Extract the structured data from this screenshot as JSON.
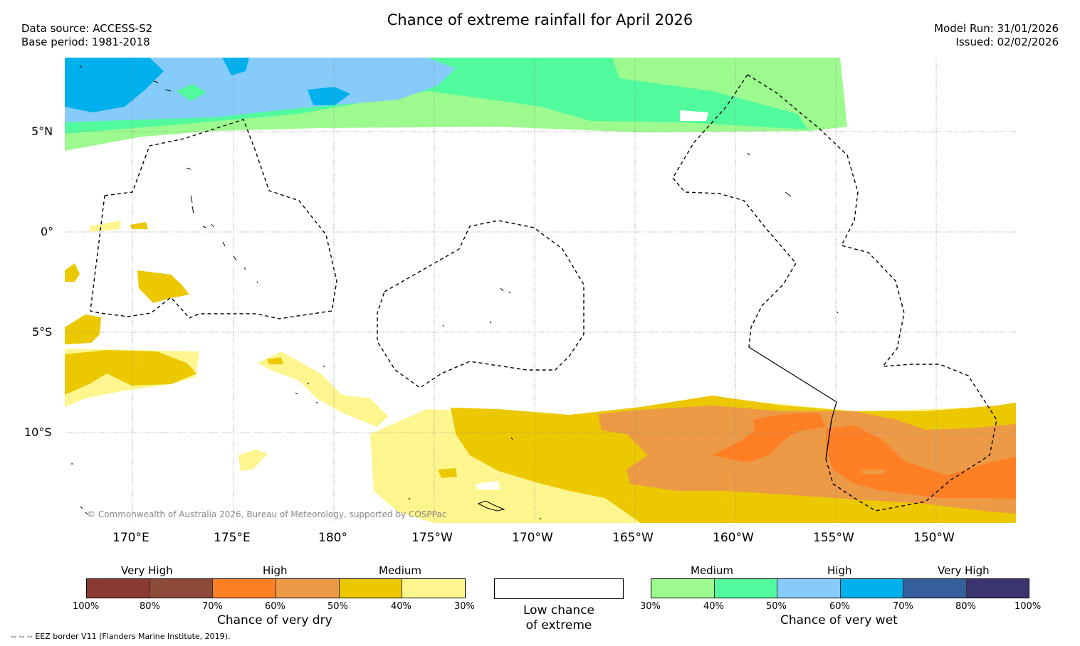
{
  "header": {
    "title": "Chance of extreme rainfall for April 2026",
    "data_source": "Data source: ACCESS-S2",
    "base_period": "Base period: 1981-2018",
    "model_run": "Model Run: 31/01/2026",
    "issued": "Issued: 02/02/2026"
  },
  "map": {
    "lat_labels": [
      "5°N",
      "0°",
      "5°S",
      "10°S"
    ],
    "lon_labels": [
      "170°E",
      "175°E",
      "180°",
      "175°W",
      "170°W",
      "165°W",
      "160°W",
      "155°W",
      "150°W"
    ],
    "copyright": "© Commonwealth of Australia 2026, Bureau of Meteorology, supported by COSPPac",
    "eez_note": "--  --  -- EEZ border V11 (Flanders Marine Institute, 2019)."
  },
  "legend": {
    "dry": {
      "title": "Chance of very dry",
      "tiers": [
        "Very High",
        "High",
        "Medium"
      ],
      "ticks": [
        "100%",
        "80%",
        "70%",
        "60%",
        "50%",
        "40%",
        "30%"
      ],
      "colors": [
        "#8b3a32",
        "#8c4a3a",
        "#ff7f24",
        "#ec9a46",
        "#ecc800",
        "#fdf58e"
      ]
    },
    "low": {
      "title_line1": "Low chance",
      "title_line2": "of extreme"
    },
    "wet": {
      "title": "Chance of very wet",
      "tiers": [
        "Medium",
        "High",
        "Very High"
      ],
      "ticks": [
        "30%",
        "40%",
        "50%",
        "60%",
        "70%",
        "80%",
        "100%"
      ],
      "colors": [
        "#9cfa8e",
        "#52fa9e",
        "#86cbfa",
        "#00b0ec",
        "#345f9c",
        "#3a356e"
      ]
    }
  }
}
